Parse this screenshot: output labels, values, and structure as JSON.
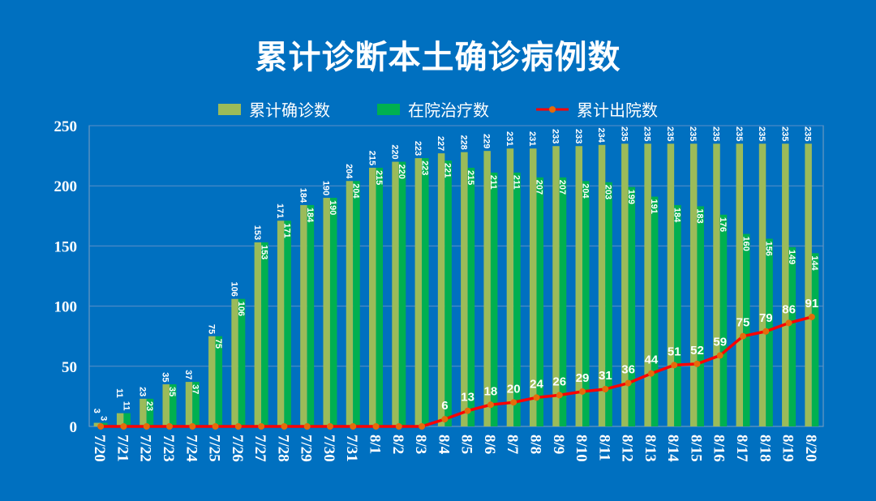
{
  "chart_data": {
    "type": "bar",
    "title": "累计诊断本土确诊病例数",
    "categories": [
      "7/20",
      "7/21",
      "7/22",
      "7/23",
      "7/24",
      "7/25",
      "7/26",
      "7/27",
      "7/28",
      "7/29",
      "7/30",
      "7/31",
      "8/1",
      "8/2",
      "8/3",
      "8/4",
      "8/5",
      "8/6",
      "8/7",
      "8/8",
      "8/9",
      "8/10",
      "8/11",
      "8/12",
      "8/13",
      "8/14",
      "8/15",
      "8/16",
      "8/17",
      "8/18",
      "8/19",
      "8/20"
    ],
    "series": [
      {
        "name": "累计确诊数",
        "type": "bar",
        "color": "#9BBB59",
        "values": [
          3,
          11,
          23,
          35,
          37,
          75,
          106,
          153,
          171,
          184,
          190,
          204,
          215,
          220,
          223,
          227,
          228,
          229,
          231,
          231,
          233,
          233,
          234,
          235,
          235,
          235,
          235,
          235,
          235,
          235,
          235,
          235
        ]
      },
      {
        "name": "在院治疗数",
        "type": "bar",
        "color": "#00B050",
        "values": [
          3,
          11,
          23,
          35,
          37,
          75,
          106,
          153,
          171,
          184,
          190,
          204,
          215,
          220,
          223,
          221,
          215,
          211,
          211,
          207,
          207,
          204,
          203,
          199,
          191,
          184,
          183,
          176,
          160,
          156,
          149,
          144
        ]
      },
      {
        "name": "累计出院数",
        "type": "line",
        "color": "#FF0000",
        "marker_color": "#E46C0A",
        "values": [
          0,
          0,
          0,
          0,
          0,
          0,
          0,
          0,
          0,
          0,
          0,
          0,
          0,
          0,
          0,
          6,
          13,
          18,
          20,
          24,
          26,
          29,
          31,
          36,
          44,
          51,
          52,
          59,
          75,
          79,
          86,
          91
        ]
      }
    ],
    "yticks": [
      0,
      50,
      100,
      150,
      200,
      250
    ],
    "ylim": [
      0,
      250
    ],
    "grid": true,
    "legend_position": "top",
    "background": "#0070C0"
  }
}
